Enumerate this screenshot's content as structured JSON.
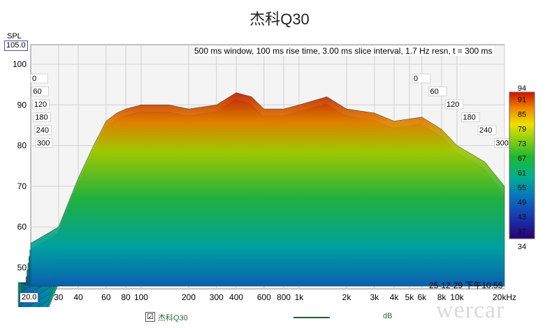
{
  "chart_data": {
    "type": "waterfall",
    "title": "杰科Q30",
    "caption": "500 ms window, 100 ms rise time, 3.00 ms slice interval, 1.7 Hz resn, t = 300 ms",
    "y_axis_label": "SPL",
    "y_top_value": "105.0",
    "y_bottom_value": "20.0",
    "y_ticks": [
      "100",
      "90",
      "80",
      "70",
      "60",
      "50"
    ],
    "x_ticks": [
      "30",
      "40",
      "60",
      "80",
      "100",
      "200",
      "300",
      "400",
      "600",
      "800",
      "1k",
      "2k",
      "3k",
      "4k",
      "5k",
      "6k",
      "8k",
      "10k",
      "20kHz"
    ],
    "x_range_hz": [
      20,
      20000
    ],
    "time_ticks_ms": [
      "0",
      "60",
      "120",
      "180",
      "240",
      "300"
    ],
    "colorbar_ticks": [
      "94",
      "91",
      "85",
      "79",
      "73",
      "67",
      "61",
      "55",
      "49",
      "43",
      "37",
      "34"
    ],
    "colorbar_range_db": [
      34,
      94
    ],
    "colorbar_unit": "dB",
    "front_slice_db": [
      [
        20,
        56
      ],
      [
        30,
        60
      ],
      [
        40,
        72
      ],
      [
        50,
        80
      ],
      [
        60,
        86
      ],
      [
        70,
        88
      ],
      [
        80,
        89
      ],
      [
        100,
        90
      ],
      [
        150,
        90
      ],
      [
        200,
        89
      ],
      [
        300,
        90
      ],
      [
        400,
        93
      ],
      [
        500,
        92
      ],
      [
        600,
        89
      ],
      [
        800,
        89
      ],
      [
        1000,
        90
      ],
      [
        1500,
        92
      ],
      [
        2000,
        89
      ],
      [
        3000,
        88
      ],
      [
        4000,
        86
      ],
      [
        6000,
        87
      ],
      [
        8000,
        84
      ],
      [
        10000,
        80
      ],
      [
        15000,
        76
      ],
      [
        20000,
        70
      ]
    ],
    "legend": {
      "checked": "☑",
      "series": "杰科Q30",
      "unit": "dB"
    },
    "timestamp": "25-12-29 下午10:55"
  },
  "watermark": "wercar"
}
